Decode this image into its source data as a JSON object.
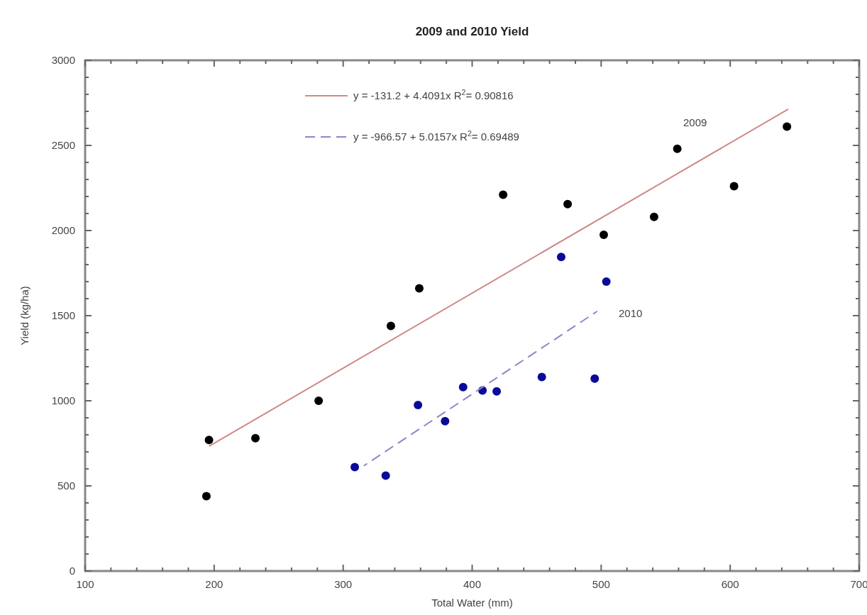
{
  "chart_data": {
    "type": "scatter",
    "title": "2009 and 2010 Yield",
    "xlabel": "Total Water (mm)",
    "ylabel": "Yield (kg/ha)",
    "xlim": [
      100,
      700
    ],
    "ylim": [
      0,
      3000
    ],
    "xticks": [
      100,
      {
        "value": 120,
        "label": null
      },
      {
        "value": 140,
        "label": null
      },
      {
        "value": 160,
        "label": null
      },
      {
        "value": 180,
        "label": null
      },
      200,
      {
        "value": 220,
        "label": null
      },
      {
        "value": 240,
        "label": null
      },
      {
        "value": 260,
        "label": null
      },
      {
        "value": 280,
        "label": null
      },
      300,
      {
        "value": 320,
        "label": null
      },
      {
        "value": 340,
        "label": null
      },
      {
        "value": 360,
        "label": null
      },
      {
        "value": 380,
        "label": null
      },
      400,
      {
        "value": 420,
        "label": null
      },
      {
        "value": 440,
        "label": null
      },
      {
        "value": 460,
        "label": null
      },
      {
        "value": 480,
        "label": null
      },
      500,
      {
        "value": 520,
        "label": null
      },
      {
        "value": 540,
        "label": null
      },
      {
        "value": 560,
        "label": null
      },
      {
        "value": 580,
        "label": null
      },
      600,
      {
        "value": 620,
        "label": null
      },
      {
        "value": 640,
        "label": null
      },
      {
        "value": 660,
        "label": null
      },
      {
        "value": 680,
        "label": null
      },
      700
    ],
    "yticks": [
      0,
      {
        "value": 100,
        "label": null
      },
      {
        "value": 200,
        "label": null
      },
      {
        "value": 300,
        "label": null
      },
      {
        "value": 400,
        "label": null
      },
      500,
      {
        "value": 600,
        "label": null
      },
      {
        "value": 700,
        "label": null
      },
      {
        "value": 800,
        "label": null
      },
      {
        "value": 900,
        "label": null
      },
      1000,
      {
        "value": 1100,
        "label": null
      },
      {
        "value": 1200,
        "label": null
      },
      {
        "value": 1300,
        "label": null
      },
      {
        "value": 1400,
        "label": null
      },
      1500,
      {
        "value": 1600,
        "label": null
      },
      {
        "value": 1700,
        "label": null
      },
      {
        "value": 1800,
        "label": null
      },
      {
        "value": 1900,
        "label": null
      },
      2000,
      {
        "value": 2100,
        "label": null
      },
      {
        "value": 2200,
        "label": null
      },
      {
        "value": 2300,
        "label": null
      },
      {
        "value": 2400,
        "label": null
      },
      2500,
      {
        "value": 2600,
        "label": null
      },
      {
        "value": 2700,
        "label": null
      },
      {
        "value": 2800,
        "label": null
      },
      {
        "value": 2900,
        "label": null
      },
      3000
    ],
    "marker": "circle",
    "legend": "top",
    "series": [
      {
        "color": "#000000",
        "x": [
          194,
          196,
          232,
          281,
          337,
          359,
          424,
          474,
          502,
          541,
          559,
          603,
          644
        ],
        "values": [
          440,
          770,
          780,
          1000,
          1440,
          1660,
          2210,
          2155,
          1975,
          2080,
          2480,
          2260,
          2610
        ]
      },
      {
        "color": "#0a0a9a",
        "x": [
          309,
          333,
          358,
          379,
          393,
          408,
          419,
          454,
          469,
          495,
          504
        ],
        "values": [
          610,
          560,
          975,
          880,
          1080,
          1060,
          1055,
          1140,
          1845,
          1130,
          1700
        ]
      },
      {
        "type": "line",
        "name": "y = -131.2 + 4.4091x  R$^{2}$= 0.90816",
        "color": "#d08888",
        "line_style": "solid",
        "marker": "none",
        "x": [
          196,
          645
        ],
        "values": [
          733,
          2713
        ]
      },
      {
        "type": "line",
        "name": "y = -966.57 + 5.0157x  R$^{2}$= 0.69489",
        "color": "#8888cc",
        "line_style": "dashed",
        "marker": "none",
        "x": [
          316,
          497
        ],
        "values": [
          618,
          1526
        ]
      }
    ],
    "annotations": [
      "2009",
      "2010"
    ]
  }
}
